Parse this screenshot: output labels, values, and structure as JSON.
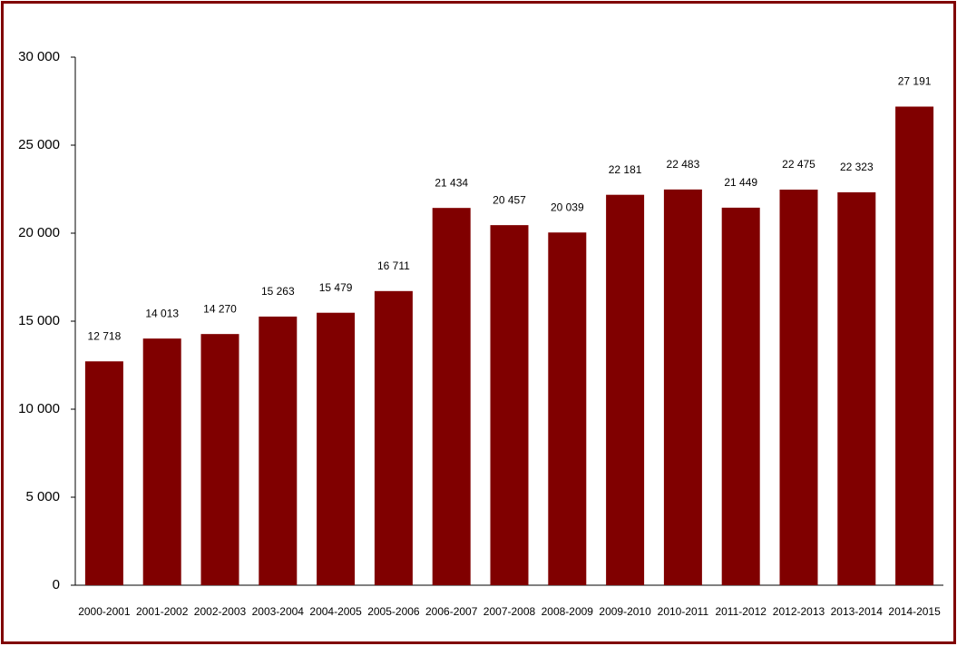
{
  "chart_data": {
    "type": "bar",
    "categories": [
      "2000-2001",
      "2001-2002",
      "2002-2003",
      "2003-2004",
      "2004-2005",
      "2005-2006",
      "2006-2007",
      "2007-2008",
      "2008-2009",
      "2009-2010",
      "2010-2011",
      "2011-2012",
      "2012-2013",
      "2013-2014",
      "2014-2015"
    ],
    "values": [
      12718,
      14013,
      14270,
      15263,
      15479,
      16711,
      21434,
      20457,
      20039,
      22181,
      22483,
      21449,
      22475,
      22323,
      27191
    ],
    "value_labels": [
      "12 718",
      "14 013",
      "14 270",
      "15 263",
      "15 479",
      "16 711",
      "21 434",
      "20 457",
      "20 039",
      "22 181",
      "22 483",
      "21 449",
      "22 475",
      "22 323",
      "27 191"
    ],
    "color": "#800000",
    "ylim": [
      0,
      30000
    ],
    "yticks": [
      0,
      {
        "value": 5000,
        "label": "5 000"
      },
      {
        "value": 10000,
        "label": "10 000"
      },
      {
        "value": 15000,
        "label": "15 000"
      },
      {
        "value": 20000,
        "label": "20 000"
      },
      {
        "value": 25000,
        "label": "25 000"
      },
      {
        "value": 30000,
        "label": "30 000"
      }
    ],
    "grid": false
  }
}
